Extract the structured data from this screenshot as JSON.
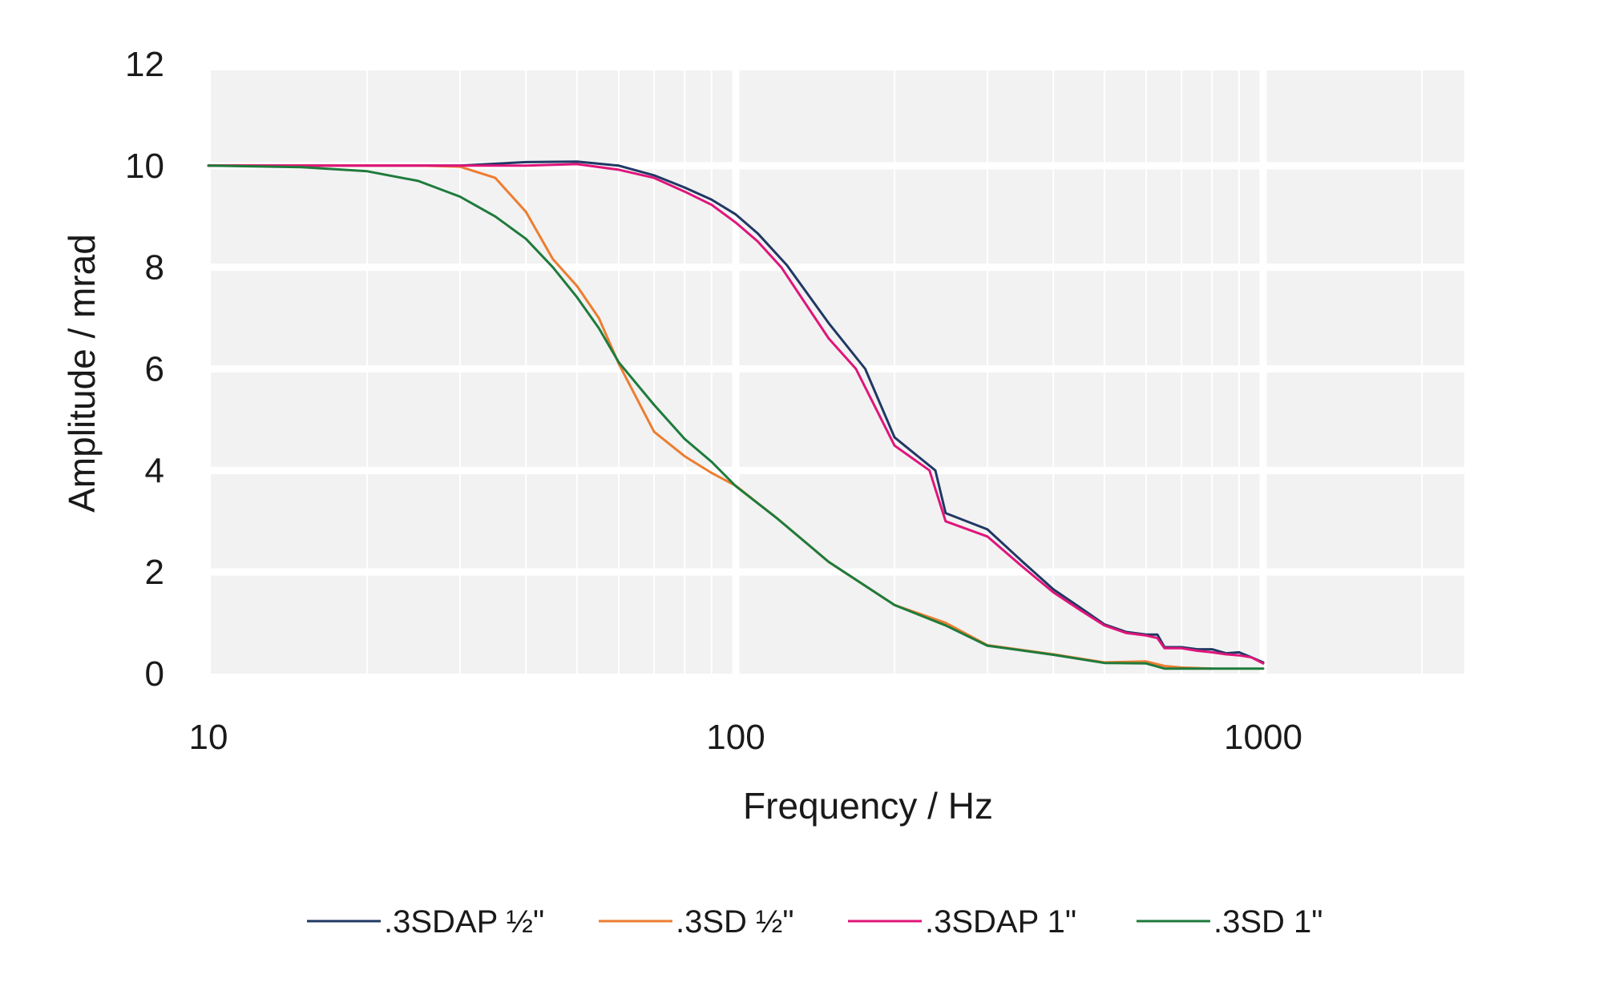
{
  "chart_data": {
    "type": "line",
    "title": "",
    "xlabel": "Frequency / Hz",
    "ylabel": "Amplitude / mrad",
    "xscale": "log",
    "xlim": [
      10,
      2400
    ],
    "ylim": [
      0,
      12
    ],
    "x_ticks": [
      10,
      100,
      1000
    ],
    "x_tick_labels": [
      "10",
      "100",
      "1000"
    ],
    "y_ticks": [
      0,
      2,
      4,
      6,
      8,
      10,
      12
    ],
    "y_tick_labels": [
      "0",
      "2",
      "4",
      "6",
      "8",
      "10",
      "12"
    ],
    "grid": true,
    "legend_position": "bottom",
    "background": "#f2f2f2",
    "series": [
      {
        "name": ".3SDAP ½\"",
        "color": "#203864",
        "x": [
          10,
          20,
          30,
          40,
          50,
          60,
          70,
          80,
          90,
          100,
          110,
          125,
          150,
          176,
          200,
          239,
          250,
          300,
          350,
          400,
          450,
          500,
          550,
          600,
          630,
          650,
          700,
          750,
          800,
          850,
          900,
          950,
          1000
        ],
        "y": [
          10.0,
          10.0,
          10.0,
          10.07,
          10.08,
          10.0,
          9.81,
          9.57,
          9.33,
          9.04,
          8.67,
          8.04,
          6.9,
          6.0,
          4.65,
          4.0,
          3.16,
          2.84,
          2.2,
          1.66,
          1.3,
          0.97,
          0.82,
          0.77,
          0.77,
          0.52,
          0.52,
          0.48,
          0.48,
          0.4,
          0.42,
          0.32,
          0.22
        ]
      },
      {
        "name": ".3SD ½\"",
        "color": "#ed7d31",
        "x": [
          10,
          20,
          25,
          30,
          35,
          40,
          45,
          50,
          55,
          60,
          70,
          80,
          90,
          100,
          120,
          150,
          200,
          250,
          300,
          400,
          500,
          600,
          650,
          700,
          800
        ],
        "y": [
          10.0,
          10.0,
          10.0,
          9.98,
          9.76,
          9.09,
          8.16,
          7.63,
          7.0,
          6.1,
          4.76,
          4.28,
          3.95,
          3.7,
          3.05,
          2.2,
          1.35,
          1.0,
          0.56,
          0.38,
          0.22,
          0.24,
          0.15,
          0.12,
          0.1
        ]
      },
      {
        "name": ".3SDAP 1\"",
        "color": "#e0157a",
        "x": [
          10,
          20,
          30,
          40,
          50,
          60,
          70,
          80,
          90,
          100,
          110,
          122,
          150,
          169,
          200,
          233,
          250,
          300,
          350,
          400,
          450,
          500,
          550,
          600,
          630,
          650,
          700,
          750,
          800,
          850,
          900,
          950,
          1000
        ],
        "y": [
          10.0,
          10.0,
          10.0,
          10.0,
          10.03,
          9.92,
          9.76,
          9.49,
          9.23,
          8.88,
          8.51,
          8.0,
          6.6,
          6.0,
          4.49,
          4.0,
          3.0,
          2.7,
          2.1,
          1.6,
          1.25,
          0.95,
          0.8,
          0.75,
          0.7,
          0.5,
          0.5,
          0.45,
          0.42,
          0.38,
          0.36,
          0.32,
          0.2
        ]
      },
      {
        "name": ".3SD 1\"",
        "color": "#1e7b3c",
        "x": [
          10,
          15,
          20,
          25,
          30,
          35,
          40,
          45,
          50,
          55,
          60,
          70,
          80,
          90,
          100,
          120,
          150,
          200,
          250,
          300,
          400,
          500,
          600,
          650,
          700,
          1000
        ],
        "y": [
          10.0,
          9.97,
          9.89,
          9.7,
          9.39,
          9.0,
          8.56,
          8.0,
          7.41,
          6.8,
          6.13,
          5.29,
          4.62,
          4.17,
          3.69,
          3.05,
          2.2,
          1.35,
          0.95,
          0.55,
          0.37,
          0.21,
          0.2,
          0.1,
          0.1,
          0.1
        ]
      }
    ]
  }
}
